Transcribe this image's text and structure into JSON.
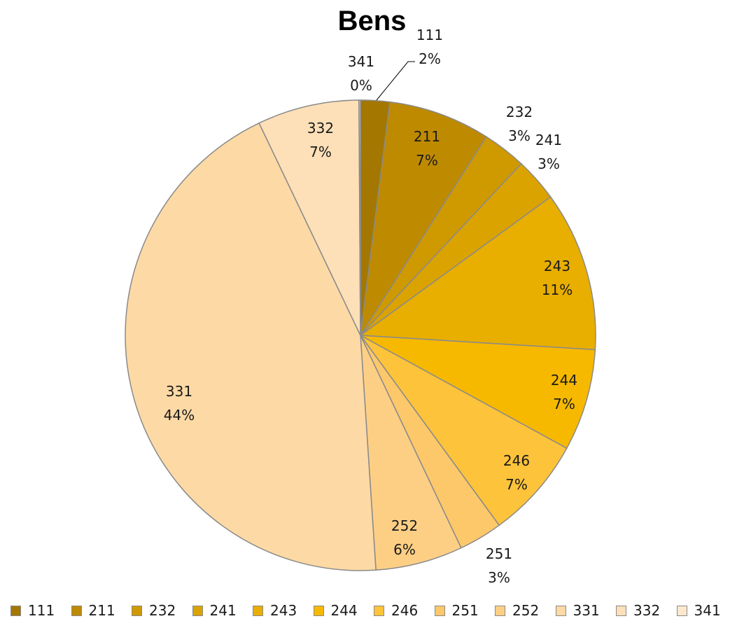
{
  "chart_data": {
    "type": "pie",
    "title": "Bens",
    "start_angle_deg": 0,
    "direction": "clockwise",
    "legend_position": "bottom",
    "slices": [
      {
        "label": "111",
        "value": 2,
        "pct_label": "2%",
        "color": "#A37700"
      },
      {
        "label": "211",
        "value": 7,
        "pct_label": "7%",
        "color": "#BE8A00"
      },
      {
        "label": "232",
        "value": 3,
        "pct_label": "3%",
        "color": "#CF9900"
      },
      {
        "label": "241",
        "value": 3,
        "pct_label": "3%",
        "color": "#DBA300"
      },
      {
        "label": "243",
        "value": 11,
        "pct_label": "11%",
        "color": "#E8AE00"
      },
      {
        "label": "244",
        "value": 7,
        "pct_label": "7%",
        "color": "#F6B900"
      },
      {
        "label": "246",
        "value": 7,
        "pct_label": "7%",
        "color": "#FDC33A"
      },
      {
        "label": "251",
        "value": 3,
        "pct_label": "3%",
        "color": "#FDC86A"
      },
      {
        "label": "252",
        "value": 6,
        "pct_label": "6%",
        "color": "#FDCF85"
      },
      {
        "label": "331",
        "value": 44,
        "pct_label": "44%",
        "color": "#FDD9A5"
      },
      {
        "label": "332",
        "value": 7,
        "pct_label": "7%",
        "color": "#FDE0B8"
      },
      {
        "label": "341",
        "value": 0.1,
        "pct_label": "0%",
        "color": "#FDE8CF"
      }
    ]
  }
}
